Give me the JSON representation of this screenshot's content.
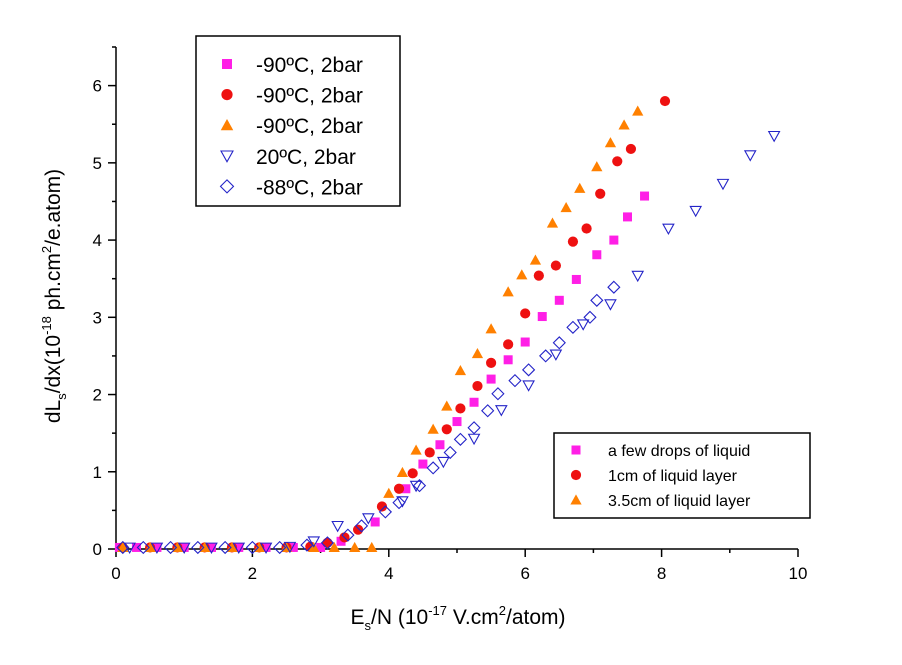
{
  "chart_data": {
    "type": "scatter",
    "xlabel": {
      "prefix": "E",
      "sub": "s",
      "mid": "/N (10",
      "sup": "-17",
      "suffix": " V.cm",
      "sup2": "2",
      "end": "/atom)"
    },
    "ylabel": {
      "prefix": "dL",
      "sub": "s",
      "mid": "/dx(10",
      "sup": "-18",
      "suffix": " ph.cm",
      "sup2": "2",
      "end": "/e.atom)"
    },
    "xlim": [
      0,
      10
    ],
    "ylim": [
      0,
      6.5
    ],
    "xticks": [
      0,
      2,
      4,
      6,
      8,
      10
    ],
    "yticks": [
      0,
      1,
      2,
      3,
      4,
      5,
      6
    ],
    "grid": false,
    "legend_main": {
      "placement": "top-left",
      "entries": [
        {
          "label": "-90ºC, 2bar",
          "marker": "square",
          "color": "#ff1fe6",
          "filled": true
        },
        {
          "label": "-90ºC, 2bar",
          "marker": "circle",
          "color": "#ee1111",
          "filled": true
        },
        {
          "label": "-90ºC, 2bar",
          "marker": "triangle-up",
          "color": "#ff8000",
          "filled": true
        },
        {
          "label": "20ºC, 2bar",
          "marker": "triangle-down",
          "color": "#2424c8",
          "filled": false
        },
        {
          "label": "-88ºC, 2bar",
          "marker": "diamond",
          "color": "#2424c8",
          "filled": false
        }
      ]
    },
    "legend_secondary": {
      "placement": "bottom-right",
      "entries": [
        {
          "label": "a few drops of liquid",
          "marker": "square",
          "color": "#ff1fe6",
          "filled": true
        },
        {
          "label": "1cm of liquid layer",
          "marker": "circle",
          "color": "#ee1111",
          "filled": true
        },
        {
          "label": "3.5cm of liquid layer",
          "marker": "triangle-up",
          "color": "#ff8000",
          "filled": true
        }
      ]
    },
    "series": [
      {
        "marker": "square",
        "color": "#ff1fe6",
        "filled": true,
        "points": [
          [
            0.05,
            0.02
          ],
          [
            0.3,
            0.02
          ],
          [
            0.6,
            0.02
          ],
          [
            1.0,
            0.02
          ],
          [
            1.4,
            0.02
          ],
          [
            1.8,
            0.02
          ],
          [
            2.2,
            0.02
          ],
          [
            2.6,
            0.02
          ],
          [
            3.0,
            0.02
          ],
          [
            3.3,
            0.1
          ],
          [
            3.8,
            0.35
          ],
          [
            4.25,
            0.78
          ],
          [
            4.5,
            1.1
          ],
          [
            4.75,
            1.35
          ],
          [
            5.0,
            1.65
          ],
          [
            5.25,
            1.9
          ],
          [
            5.5,
            2.2
          ],
          [
            5.75,
            2.45
          ],
          [
            6.0,
            2.68
          ],
          [
            6.25,
            3.01
          ],
          [
            6.5,
            3.22
          ],
          [
            6.75,
            3.49
          ],
          [
            7.05,
            3.81
          ],
          [
            7.3,
            4.0
          ],
          [
            7.5,
            4.3
          ],
          [
            7.75,
            4.57
          ]
        ]
      },
      {
        "marker": "circle",
        "color": "#ee1111",
        "filled": true,
        "points": [
          [
            0.1,
            0.02
          ],
          [
            0.5,
            0.02
          ],
          [
            0.9,
            0.02
          ],
          [
            1.3,
            0.02
          ],
          [
            1.7,
            0.02
          ],
          [
            2.1,
            0.02
          ],
          [
            2.5,
            0.02
          ],
          [
            2.85,
            0.03
          ],
          [
            3.1,
            0.08
          ],
          [
            3.35,
            0.15
          ],
          [
            3.55,
            0.25
          ],
          [
            3.9,
            0.55
          ],
          [
            4.15,
            0.78
          ],
          [
            4.35,
            0.98
          ],
          [
            4.6,
            1.25
          ],
          [
            4.85,
            1.55
          ],
          [
            5.05,
            1.82
          ],
          [
            5.3,
            2.11
          ],
          [
            5.5,
            2.41
          ],
          [
            5.75,
            2.65
          ],
          [
            6.0,
            3.05
          ],
          [
            6.2,
            3.54
          ],
          [
            6.45,
            3.67
          ],
          [
            6.7,
            3.98
          ],
          [
            6.9,
            4.15
          ],
          [
            7.1,
            4.6
          ],
          [
            7.35,
            5.02
          ],
          [
            7.55,
            5.18
          ],
          [
            8.05,
            5.8
          ]
        ]
      },
      {
        "marker": "triangle-up",
        "color": "#ff8000",
        "filled": true,
        "points": [
          [
            0.1,
            0.02
          ],
          [
            0.5,
            0.02
          ],
          [
            0.9,
            0.02
          ],
          [
            1.3,
            0.02
          ],
          [
            1.7,
            0.02
          ],
          [
            2.1,
            0.02
          ],
          [
            2.5,
            0.02
          ],
          [
            2.9,
            0.02
          ],
          [
            3.2,
            0.02
          ],
          [
            3.5,
            0.02
          ],
          [
            3.75,
            0.02
          ],
          [
            4.0,
            0.72
          ],
          [
            4.2,
            0.99
          ],
          [
            4.4,
            1.28
          ],
          [
            4.65,
            1.55
          ],
          [
            4.85,
            1.85
          ],
          [
            5.05,
            2.31
          ],
          [
            5.3,
            2.53
          ],
          [
            5.5,
            2.85
          ],
          [
            5.75,
            3.33
          ],
          [
            5.95,
            3.55
          ],
          [
            6.15,
            3.74
          ],
          [
            6.4,
            4.22
          ],
          [
            6.6,
            4.42
          ],
          [
            6.8,
            4.67
          ],
          [
            7.05,
            4.95
          ],
          [
            7.25,
            5.26
          ],
          [
            7.45,
            5.49
          ],
          [
            7.65,
            5.67
          ]
        ]
      },
      {
        "marker": "triangle-down",
        "color": "#2424c8",
        "filled": false,
        "points": [
          [
            0.2,
            0.02
          ],
          [
            0.6,
            0.02
          ],
          [
            1.0,
            0.02
          ],
          [
            1.4,
            0.02
          ],
          [
            1.8,
            0.02
          ],
          [
            2.2,
            0.02
          ],
          [
            2.55,
            0.03
          ],
          [
            2.9,
            0.1
          ],
          [
            3.25,
            0.3
          ],
          [
            3.7,
            0.4
          ],
          [
            4.2,
            0.62
          ],
          [
            4.4,
            0.82
          ],
          [
            4.8,
            1.13
          ],
          [
            5.25,
            1.43
          ],
          [
            5.65,
            1.8
          ],
          [
            6.05,
            2.12
          ],
          [
            6.45,
            2.52
          ],
          [
            6.85,
            2.91
          ],
          [
            7.25,
            3.17
          ],
          [
            7.65,
            3.54
          ],
          [
            8.1,
            4.15
          ],
          [
            8.5,
            4.38
          ],
          [
            8.9,
            4.73
          ],
          [
            9.3,
            5.1
          ],
          [
            9.65,
            5.35
          ]
        ]
      },
      {
        "marker": "diamond",
        "color": "#2424c8",
        "filled": false,
        "points": [
          [
            0.1,
            0.02
          ],
          [
            0.4,
            0.02
          ],
          [
            0.8,
            0.02
          ],
          [
            1.2,
            0.02
          ],
          [
            1.6,
            0.02
          ],
          [
            2.0,
            0.02
          ],
          [
            2.4,
            0.02
          ],
          [
            2.8,
            0.05
          ],
          [
            3.1,
            0.08
          ],
          [
            3.4,
            0.18
          ],
          [
            3.6,
            0.3
          ],
          [
            3.95,
            0.48
          ],
          [
            4.15,
            0.6
          ],
          [
            4.45,
            0.82
          ],
          [
            4.65,
            1.05
          ],
          [
            4.9,
            1.25
          ],
          [
            5.05,
            1.42
          ],
          [
            5.25,
            1.57
          ],
          [
            5.45,
            1.79
          ],
          [
            5.6,
            2.01
          ],
          [
            5.85,
            2.18
          ],
          [
            6.05,
            2.32
          ],
          [
            6.3,
            2.5
          ],
          [
            6.5,
            2.67
          ],
          [
            6.7,
            2.87
          ],
          [
            6.95,
            3.0
          ],
          [
            7.05,
            3.22
          ],
          [
            7.3,
            3.39
          ]
        ]
      }
    ]
  }
}
